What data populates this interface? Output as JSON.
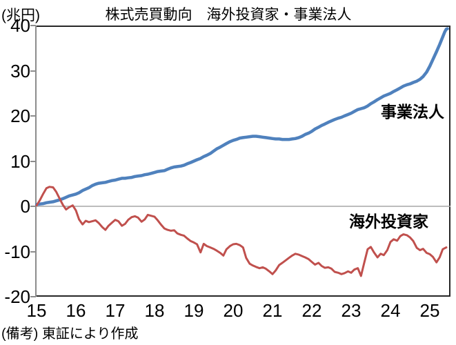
{
  "chart_data": {
    "type": "line",
    "title": "株式売買動向　海外投資家・事業法人",
    "unit_label": "(兆円)",
    "note": "(備考) 東証により作成",
    "grid": false,
    "zero_line": true,
    "zero_line_color": "#a6a6a6",
    "frame_color": "#262626",
    "axis_color": "#8c8c8c",
    "x_axis": {
      "ticks": [
        "15",
        "16",
        "17",
        "18",
        "19",
        "20",
        "21",
        "22",
        "23",
        "24",
        "25"
      ],
      "tick_values": [
        15,
        16,
        17,
        18,
        19,
        20,
        21,
        22,
        23,
        24,
        25
      ],
      "min": 15,
      "max": 25.53
    },
    "y_axis": {
      "ticks": [
        "40",
        "30",
        "20",
        "10",
        "0",
        "-10",
        "-20"
      ],
      "tick_values": [
        40,
        30,
        20,
        10,
        0,
        -10,
        -20
      ],
      "min": -20,
      "max": 40
    },
    "series": [
      {
        "name": "事業法人",
        "color": "#4f81bd",
        "stroke_width": 4.5,
        "points": [
          [
            15.0,
            0.4
          ],
          [
            15.08,
            0.5
          ],
          [
            15.17,
            0.6
          ],
          [
            15.25,
            0.8
          ],
          [
            15.33,
            0.9
          ],
          [
            15.42,
            1.0
          ],
          [
            15.5,
            1.2
          ],
          [
            15.58,
            1.4
          ],
          [
            15.67,
            1.7
          ],
          [
            15.75,
            2.0
          ],
          [
            15.83,
            2.3
          ],
          [
            15.92,
            2.5
          ],
          [
            16.0,
            2.7
          ],
          [
            16.08,
            3.0
          ],
          [
            16.17,
            3.5
          ],
          [
            16.25,
            3.8
          ],
          [
            16.33,
            4.1
          ],
          [
            16.42,
            4.6
          ],
          [
            16.5,
            4.9
          ],
          [
            16.58,
            5.1
          ],
          [
            16.67,
            5.2
          ],
          [
            16.75,
            5.3
          ],
          [
            16.83,
            5.5
          ],
          [
            16.92,
            5.7
          ],
          [
            17.0,
            5.8
          ],
          [
            17.08,
            6.0
          ],
          [
            17.17,
            6.2
          ],
          [
            17.25,
            6.2
          ],
          [
            17.33,
            6.3
          ],
          [
            17.42,
            6.4
          ],
          [
            17.5,
            6.6
          ],
          [
            17.58,
            6.7
          ],
          [
            17.67,
            6.8
          ],
          [
            17.75,
            7.0
          ],
          [
            17.83,
            7.1
          ],
          [
            17.92,
            7.3
          ],
          [
            18.0,
            7.5
          ],
          [
            18.08,
            7.7
          ],
          [
            18.17,
            7.8
          ],
          [
            18.25,
            7.9
          ],
          [
            18.33,
            8.2
          ],
          [
            18.42,
            8.5
          ],
          [
            18.5,
            8.7
          ],
          [
            18.58,
            8.8
          ],
          [
            18.67,
            8.9
          ],
          [
            18.75,
            9.1
          ],
          [
            18.83,
            9.4
          ],
          [
            18.92,
            9.7
          ],
          [
            19.0,
            10.0
          ],
          [
            19.08,
            10.3
          ],
          [
            19.17,
            10.6
          ],
          [
            19.25,
            11.0
          ],
          [
            19.33,
            11.3
          ],
          [
            19.42,
            11.7
          ],
          [
            19.5,
            12.2
          ],
          [
            19.58,
            12.7
          ],
          [
            19.67,
            13.1
          ],
          [
            19.75,
            13.5
          ],
          [
            19.83,
            13.9
          ],
          [
            19.92,
            14.3
          ],
          [
            20.0,
            14.6
          ],
          [
            20.08,
            14.8
          ],
          [
            20.17,
            15.1
          ],
          [
            20.25,
            15.2
          ],
          [
            20.33,
            15.3
          ],
          [
            20.42,
            15.4
          ],
          [
            20.5,
            15.5
          ],
          [
            20.58,
            15.5
          ],
          [
            20.67,
            15.4
          ],
          [
            20.75,
            15.3
          ],
          [
            20.83,
            15.2
          ],
          [
            20.92,
            15.1
          ],
          [
            21.0,
            15.0
          ],
          [
            21.08,
            14.9
          ],
          [
            21.17,
            14.9
          ],
          [
            21.25,
            14.8
          ],
          [
            21.33,
            14.8
          ],
          [
            21.42,
            14.8
          ],
          [
            21.5,
            14.9
          ],
          [
            21.58,
            15.0
          ],
          [
            21.67,
            15.2
          ],
          [
            21.75,
            15.5
          ],
          [
            21.83,
            15.9
          ],
          [
            21.92,
            16.2
          ],
          [
            22.0,
            16.6
          ],
          [
            22.08,
            17.1
          ],
          [
            22.17,
            17.5
          ],
          [
            22.25,
            17.9
          ],
          [
            22.33,
            18.2
          ],
          [
            22.42,
            18.6
          ],
          [
            22.5,
            18.9
          ],
          [
            22.58,
            19.2
          ],
          [
            22.67,
            19.5
          ],
          [
            22.75,
            19.7
          ],
          [
            22.83,
            20.0
          ],
          [
            22.92,
            20.3
          ],
          [
            23.0,
            20.6
          ],
          [
            23.08,
            21.0
          ],
          [
            23.17,
            21.4
          ],
          [
            23.25,
            21.6
          ],
          [
            23.33,
            21.8
          ],
          [
            23.42,
            22.2
          ],
          [
            23.5,
            22.7
          ],
          [
            23.58,
            23.1
          ],
          [
            23.67,
            23.6
          ],
          [
            23.75,
            24.0
          ],
          [
            23.83,
            24.4
          ],
          [
            23.92,
            24.7
          ],
          [
            24.0,
            25.0
          ],
          [
            24.08,
            25.4
          ],
          [
            24.17,
            25.8
          ],
          [
            24.25,
            26.2
          ],
          [
            24.33,
            26.6
          ],
          [
            24.42,
            26.9
          ],
          [
            24.5,
            27.1
          ],
          [
            24.58,
            27.4
          ],
          [
            24.67,
            27.7
          ],
          [
            24.75,
            28.1
          ],
          [
            24.83,
            28.7
          ],
          [
            24.92,
            29.7
          ],
          [
            25.0,
            31.0
          ],
          [
            25.08,
            32.5
          ],
          [
            25.17,
            34.2
          ],
          [
            25.25,
            35.8
          ],
          [
            25.33,
            37.5
          ],
          [
            25.38,
            38.6
          ],
          [
            25.42,
            39.2
          ],
          [
            25.45,
            39.3
          ]
        ]
      },
      {
        "name": "海外投資家",
        "color": "#c0504d",
        "stroke_width": 3,
        "points": [
          [
            15.0,
            0.2
          ],
          [
            15.08,
            1.3
          ],
          [
            15.17,
            2.8
          ],
          [
            15.25,
            4.0
          ],
          [
            15.33,
            4.3
          ],
          [
            15.42,
            4.2
          ],
          [
            15.5,
            3.2
          ],
          [
            15.58,
            1.8
          ],
          [
            15.67,
            0.3
          ],
          [
            15.75,
            -0.7
          ],
          [
            15.83,
            -0.2
          ],
          [
            15.92,
            0.2
          ],
          [
            16.0,
            -0.9
          ],
          [
            16.08,
            -2.9
          ],
          [
            16.17,
            -4.0
          ],
          [
            16.25,
            -3.2
          ],
          [
            16.33,
            -3.5
          ],
          [
            16.42,
            -3.3
          ],
          [
            16.5,
            -3.1
          ],
          [
            16.58,
            -3.7
          ],
          [
            16.67,
            -4.6
          ],
          [
            16.75,
            -5.2
          ],
          [
            16.83,
            -4.3
          ],
          [
            16.92,
            -3.6
          ],
          [
            17.0,
            -3.0
          ],
          [
            17.08,
            -3.3
          ],
          [
            17.17,
            -4.3
          ],
          [
            17.25,
            -3.9
          ],
          [
            17.33,
            -3.0
          ],
          [
            17.42,
            -2.4
          ],
          [
            17.5,
            -2.2
          ],
          [
            17.58,
            -2.5
          ],
          [
            17.67,
            -3.4
          ],
          [
            17.75,
            -2.9
          ],
          [
            17.83,
            -1.9
          ],
          [
            17.92,
            -2.1
          ],
          [
            18.0,
            -2.3
          ],
          [
            18.08,
            -3.1
          ],
          [
            18.17,
            -4.1
          ],
          [
            18.25,
            -4.9
          ],
          [
            18.33,
            -5.2
          ],
          [
            18.42,
            -5.4
          ],
          [
            18.5,
            -5.3
          ],
          [
            18.58,
            -6.0
          ],
          [
            18.67,
            -6.3
          ],
          [
            18.75,
            -6.5
          ],
          [
            18.83,
            -7.1
          ],
          [
            18.92,
            -7.7
          ],
          [
            19.0,
            -8.0
          ],
          [
            19.08,
            -8.4
          ],
          [
            19.17,
            -10.2
          ],
          [
            19.25,
            -8.3
          ],
          [
            19.33,
            -8.8
          ],
          [
            19.42,
            -9.1
          ],
          [
            19.5,
            -9.4
          ],
          [
            19.58,
            -9.8
          ],
          [
            19.67,
            -10.3
          ],
          [
            19.75,
            -10.9
          ],
          [
            19.83,
            -9.5
          ],
          [
            19.92,
            -8.8
          ],
          [
            20.0,
            -8.4
          ],
          [
            20.08,
            -8.3
          ],
          [
            20.17,
            -8.6
          ],
          [
            20.25,
            -9.1
          ],
          [
            20.33,
            -11.4
          ],
          [
            20.42,
            -12.7
          ],
          [
            20.5,
            -13.1
          ],
          [
            20.58,
            -13.4
          ],
          [
            20.67,
            -13.7
          ],
          [
            20.75,
            -13.5
          ],
          [
            20.83,
            -13.8
          ],
          [
            20.92,
            -14.4
          ],
          [
            21.0,
            -15.0
          ],
          [
            21.08,
            -14.2
          ],
          [
            21.17,
            -13.0
          ],
          [
            21.25,
            -12.5
          ],
          [
            21.33,
            -12.0
          ],
          [
            21.42,
            -11.4
          ],
          [
            21.5,
            -10.9
          ],
          [
            21.58,
            -10.5
          ],
          [
            21.67,
            -10.7
          ],
          [
            21.75,
            -11.0
          ],
          [
            21.83,
            -11.3
          ],
          [
            21.92,
            -11.7
          ],
          [
            22.0,
            -12.3
          ],
          [
            22.08,
            -12.9
          ],
          [
            22.17,
            -12.5
          ],
          [
            22.25,
            -13.2
          ],
          [
            22.33,
            -13.6
          ],
          [
            22.42,
            -13.5
          ],
          [
            22.5,
            -13.8
          ],
          [
            22.58,
            -14.5
          ],
          [
            22.67,
            -14.7
          ],
          [
            22.75,
            -15.0
          ],
          [
            22.83,
            -14.8
          ],
          [
            22.92,
            -14.4
          ],
          [
            23.0,
            -14.7
          ],
          [
            23.08,
            -14.0
          ],
          [
            23.17,
            -13.7
          ],
          [
            23.25,
            -15.4
          ],
          [
            23.33,
            -12.6
          ],
          [
            23.42,
            -9.5
          ],
          [
            23.5,
            -9.0
          ],
          [
            23.58,
            -10.2
          ],
          [
            23.67,
            -11.3
          ],
          [
            23.75,
            -10.5
          ],
          [
            23.83,
            -10.8
          ],
          [
            23.92,
            -9.7
          ],
          [
            24.0,
            -7.9
          ],
          [
            24.08,
            -7.3
          ],
          [
            24.17,
            -7.6
          ],
          [
            24.25,
            -6.6
          ],
          [
            24.33,
            -6.2
          ],
          [
            24.42,
            -6.4
          ],
          [
            24.5,
            -6.9
          ],
          [
            24.58,
            -7.7
          ],
          [
            24.67,
            -9.2
          ],
          [
            24.75,
            -9.7
          ],
          [
            24.83,
            -9.4
          ],
          [
            24.92,
            -10.3
          ],
          [
            25.0,
            -10.6
          ],
          [
            25.08,
            -11.2
          ],
          [
            25.17,
            -12.4
          ],
          [
            25.25,
            -11.3
          ],
          [
            25.33,
            -9.5
          ],
          [
            25.42,
            -9.1
          ]
        ]
      }
    ]
  }
}
